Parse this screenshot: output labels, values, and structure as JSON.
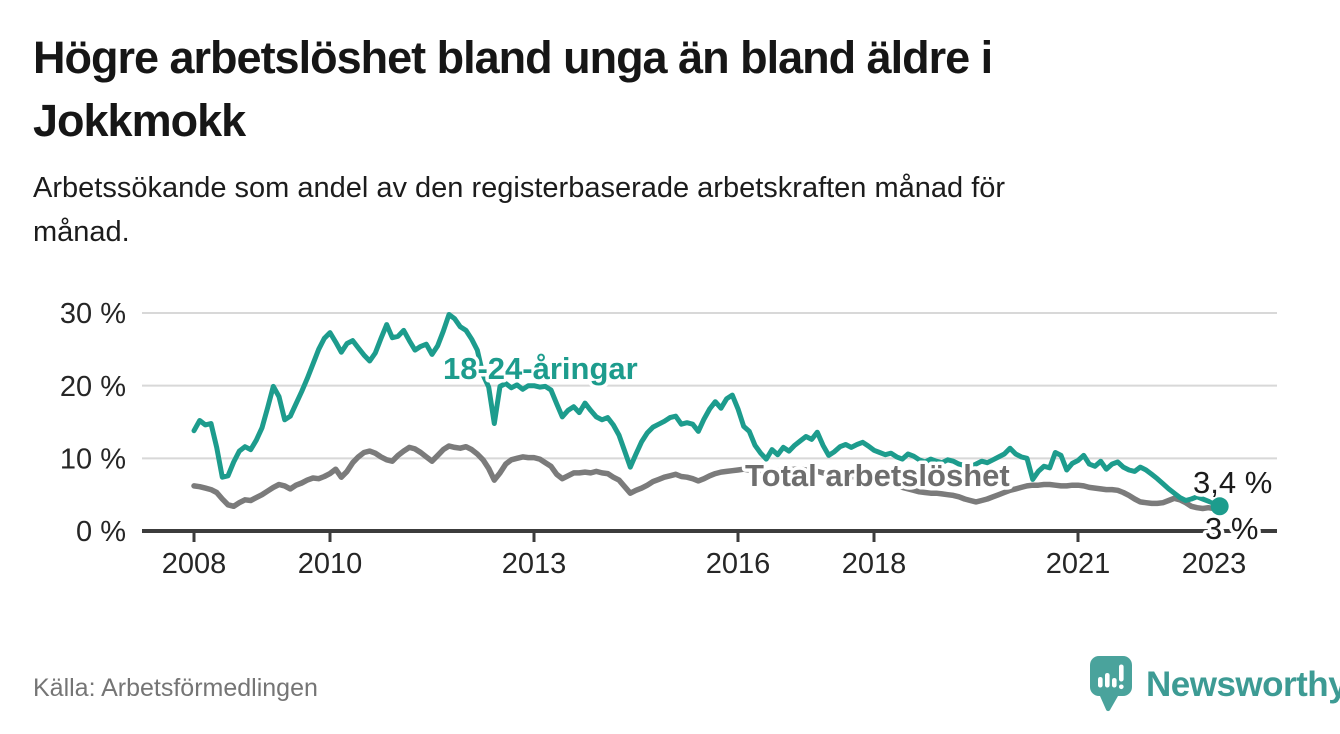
{
  "title": {
    "lines": [
      "Högre arbetslöshet bland unga än bland äldre i",
      "Jokkmokk"
    ],
    "full": "Högre arbetslöshet bland unga än bland äldre i Jokkmokk"
  },
  "subtitle": {
    "lines": [
      "Arbetssökande som andel av den registerbaserade arbetskraften månad för",
      "månad."
    ],
    "full": "Arbetssökande som andel av den registerbaserade arbetskraften månad för månad."
  },
  "source": {
    "label": "Källa: Arbetsförmedlingen"
  },
  "branding": {
    "name": "Newsworthy",
    "logo_icon": "bar-chart-speech-bubble",
    "logo_color": "#4aa39c",
    "text_color": "#3d9b94"
  },
  "colors": {
    "youth_line": "#1d9c8d",
    "total_line": "#7b7b7b",
    "total_label": "#6e6e6e",
    "annotation": "#1c1c1c",
    "gridline": "#d8d8d8",
    "axis": "#3c3c3c",
    "tick_text": "#262626"
  },
  "chart_data": {
    "type": "line",
    "frequency": "monthly",
    "x_start": "2008-01",
    "x_end": "2023-02",
    "ylim": [
      0,
      32
    ],
    "grid": "horizontal",
    "y_ticks": [
      {
        "value": 0,
        "label": "0 %"
      },
      {
        "value": 10,
        "label": "10 %"
      },
      {
        "value": 20,
        "label": "20 %"
      },
      {
        "value": 30,
        "label": "30 %"
      }
    ],
    "x_ticks": [
      {
        "year": 2008,
        "label": "2008"
      },
      {
        "year": 2010,
        "label": "2010"
      },
      {
        "year": 2013,
        "label": "2013"
      },
      {
        "year": 2016,
        "label": "2016"
      },
      {
        "year": 2018,
        "label": "2018"
      },
      {
        "year": 2021,
        "label": "2021"
      },
      {
        "year": 2023,
        "label": "2023"
      }
    ],
    "series": [
      {
        "name": "18-24-åringar",
        "color": "#1d9c8d",
        "end_value": 3.4,
        "end_value_label": "3,4 %",
        "end_marker": true,
        "values": [
          13.8,
          15.2,
          14.6,
          14.8,
          11.5,
          7.4,
          7.6,
          9.5,
          11.0,
          11.6,
          11.2,
          12.5,
          14.2,
          17.0,
          19.9,
          18.5,
          15.3,
          15.8,
          17.5,
          19.2,
          21.0,
          23.0,
          25.0,
          26.5,
          27.3,
          26.0,
          24.6,
          25.8,
          26.2,
          25.2,
          24.2,
          23.4,
          24.5,
          26.5,
          28.4,
          26.6,
          26.8,
          27.6,
          26.2,
          24.9,
          25.4,
          25.7,
          24.3,
          25.5,
          27.5,
          29.8,
          29.2,
          28.1,
          27.6,
          26.4,
          24.9,
          21.5,
          19.8,
          14.8,
          19.9,
          20.3,
          19.7,
          20.1,
          19.5,
          20.0,
          20.0,
          19.8,
          19.9,
          19.4,
          17.5,
          15.7,
          16.6,
          17.1,
          16.3,
          17.6,
          16.6,
          15.7,
          15.3,
          15.6,
          14.6,
          13.2,
          11.0,
          8.8,
          10.6,
          12.3,
          13.5,
          14.3,
          14.7,
          15.1,
          15.6,
          15.8,
          14.7,
          14.9,
          14.7,
          13.7,
          15.4,
          16.8,
          17.8,
          16.9,
          18.2,
          18.7,
          16.8,
          14.4,
          13.7,
          11.8,
          10.7,
          9.9,
          11.2,
          10.5,
          11.5,
          11.0,
          11.8,
          12.4,
          13.0,
          12.6,
          13.6,
          11.8,
          10.4,
          10.9,
          11.6,
          11.9,
          11.5,
          11.9,
          12.2,
          11.7,
          11.1,
          10.8,
          10.5,
          10.7,
          10.2,
          9.9,
          10.6,
          10.3,
          9.8,
          9.5,
          9.9,
          9.6,
          9.4,
          9.8,
          9.6,
          9.2,
          9.0,
          8.8,
          9.2,
          9.6,
          9.4,
          9.8,
          10.2,
          10.6,
          11.4,
          10.6,
          10.2,
          10.0,
          7.1,
          8.2,
          8.9,
          8.7,
          10.8,
          10.4,
          8.4,
          9.3,
          9.7,
          10.4,
          9.2,
          8.9,
          9.6,
          8.5,
          9.2,
          9.5,
          8.8,
          8.4,
          8.2,
          8.8,
          8.4,
          7.8,
          7.2,
          6.5,
          5.8,
          5.2,
          4.6,
          4.2,
          4.4,
          4.7,
          4.4,
          4.1,
          3.8,
          3.4
        ]
      },
      {
        "name": "Total arbetslöshet",
        "color": "#7b7b7b",
        "end_value": 3.0,
        "end_value_label": "3 %",
        "end_marker": false,
        "values": [
          6.2,
          6.1,
          5.9,
          5.7,
          5.3,
          4.4,
          3.6,
          3.4,
          3.9,
          4.3,
          4.2,
          4.6,
          5.0,
          5.5,
          6.0,
          6.4,
          6.2,
          5.8,
          6.3,
          6.6,
          7.0,
          7.3,
          7.2,
          7.5,
          7.9,
          8.5,
          7.4,
          8.2,
          9.4,
          10.2,
          10.8,
          11.0,
          10.7,
          10.2,
          9.8,
          9.6,
          10.4,
          11.0,
          11.5,
          11.3,
          10.8,
          10.2,
          9.6,
          10.4,
          11.2,
          11.7,
          11.5,
          11.4,
          11.6,
          11.2,
          10.6,
          9.8,
          8.6,
          7.0,
          8.0,
          9.2,
          9.8,
          10.0,
          10.2,
          10.1,
          10.1,
          9.9,
          9.4,
          8.9,
          7.8,
          7.2,
          7.6,
          8.0,
          8.0,
          8.1,
          8.0,
          8.2,
          8.0,
          7.9,
          7.4,
          7.0,
          6.1,
          5.2,
          5.6,
          5.9,
          6.3,
          6.8,
          7.1,
          7.4,
          7.6,
          7.8,
          7.5,
          7.4,
          7.2,
          6.9,
          7.2,
          7.6,
          7.9,
          8.1,
          8.2,
          8.3,
          8.4,
          8.5,
          8.4,
          8.3,
          8.2,
          8.1,
          8.2,
          8.3,
          8.4,
          8.4,
          8.5,
          8.5,
          8.4,
          8.3,
          8.2,
          8.0,
          7.9,
          7.8,
          7.7,
          7.6,
          7.5,
          7.4,
          7.3,
          7.2,
          7.0,
          6.9,
          6.7,
          6.5,
          6.3,
          6.0,
          5.8,
          5.6,
          5.4,
          5.3,
          5.2,
          5.2,
          5.1,
          5.0,
          4.9,
          4.7,
          4.4,
          4.2,
          4.0,
          4.2,
          4.4,
          4.7,
          5.0,
          5.3,
          5.6,
          5.8,
          6.0,
          6.2,
          6.3,
          6.3,
          6.4,
          6.4,
          6.3,
          6.2,
          6.2,
          6.3,
          6.3,
          6.2,
          6.0,
          5.9,
          5.8,
          5.7,
          5.7,
          5.6,
          5.3,
          4.9,
          4.4,
          4.0,
          3.9,
          3.8,
          3.8,
          3.9,
          4.2,
          4.5,
          4.3,
          3.9,
          3.4,
          3.2,
          3.1,
          3.2,
          3.1,
          3.0
        ]
      }
    ]
  }
}
